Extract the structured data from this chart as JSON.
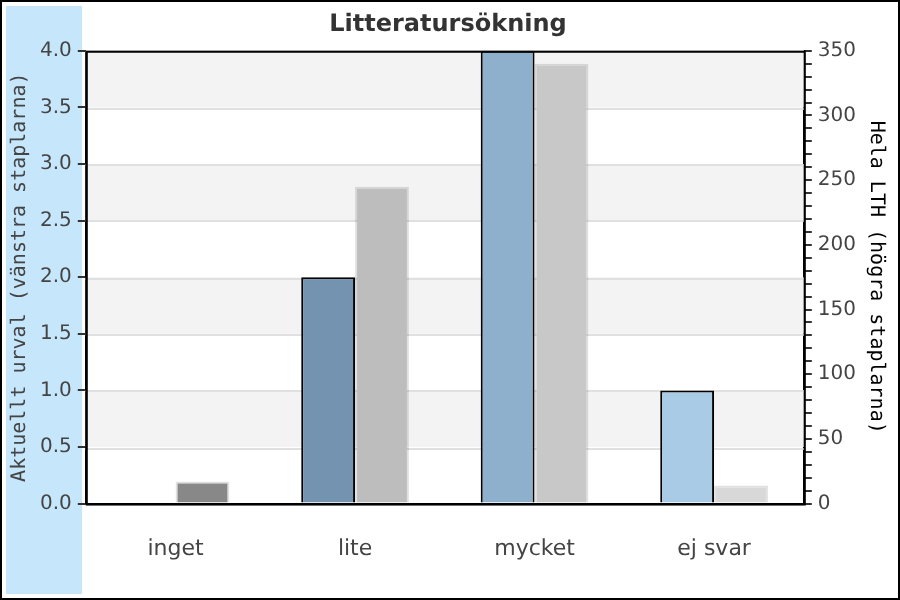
{
  "chart_data": {
    "type": "bar",
    "title": "Litteratursökning",
    "ylabel": "Aktuellt urval (vänstra staplarna)",
    "y2label": "Hela LTH (högra staplarna)",
    "categories": [
      "inget",
      "lite",
      "mycket",
      "ej svar"
    ],
    "series": [
      {
        "axis": "y",
        "colors": [
          "#5f7f9a",
          "#7393b0",
          "#8fb0cc",
          "#aacbe6"
        ],
        "values": [
          0,
          2,
          4,
          1
        ]
      },
      {
        "axis": "y2",
        "colors": [
          "#888888",
          "#bdbdbd",
          "#c8c8c8",
          "#d8d8d8"
        ],
        "values": [
          17,
          245,
          340,
          14
        ]
      }
    ],
    "ylim": [
      0,
      4
    ],
    "yticks": [
      {
        "value": 0,
        "label": "0.0"
      },
      {
        "value": 0.5,
        "label": "0.5"
      },
      {
        "value": 1,
        "label": "1.0"
      },
      {
        "value": 1.5,
        "label": "1.5"
      },
      {
        "value": 2,
        "label": "2.0"
      },
      {
        "value": 2.5,
        "label": "2.5"
      },
      {
        "value": 3,
        "label": "3.0"
      },
      {
        "value": 3.5,
        "label": "3.5"
      },
      {
        "value": 4,
        "label": "4.0"
      }
    ],
    "y2lim": [
      0,
      350
    ],
    "y2ticks": [
      0,
      {
        "value": 10,
        "label": null
      },
      {
        "value": 20,
        "label": null
      },
      {
        "value": 30,
        "label": null
      },
      {
        "value": 40,
        "label": null
      },
      50,
      {
        "value": 60,
        "label": null
      },
      {
        "value": 70,
        "label": null
      },
      {
        "value": 80,
        "label": null
      },
      {
        "value": 90,
        "label": null
      },
      100,
      {
        "value": 110,
        "label": null
      },
      {
        "value": 120,
        "label": null
      },
      {
        "value": 130,
        "label": null
      },
      {
        "value": 140,
        "label": null
      },
      150,
      {
        "value": 160,
        "label": null
      },
      {
        "value": 170,
        "label": null
      },
      {
        "value": 180,
        "label": null
      },
      {
        "value": 190,
        "label": null
      },
      200,
      {
        "value": 210,
        "label": null
      },
      {
        "value": 220,
        "label": null
      },
      {
        "value": 230,
        "label": null
      },
      {
        "value": 240,
        "label": null
      },
      250,
      {
        "value": 260,
        "label": null
      },
      {
        "value": 270,
        "label": null
      },
      {
        "value": 280,
        "label": null
      },
      {
        "value": 290,
        "label": null
      },
      300,
      {
        "value": 310,
        "label": null
      },
      {
        "value": 320,
        "label": null
      },
      {
        "value": 330,
        "label": null
      },
      {
        "value": 340,
        "label": null
      },
      350
    ],
    "grid": "y",
    "legend": false
  }
}
